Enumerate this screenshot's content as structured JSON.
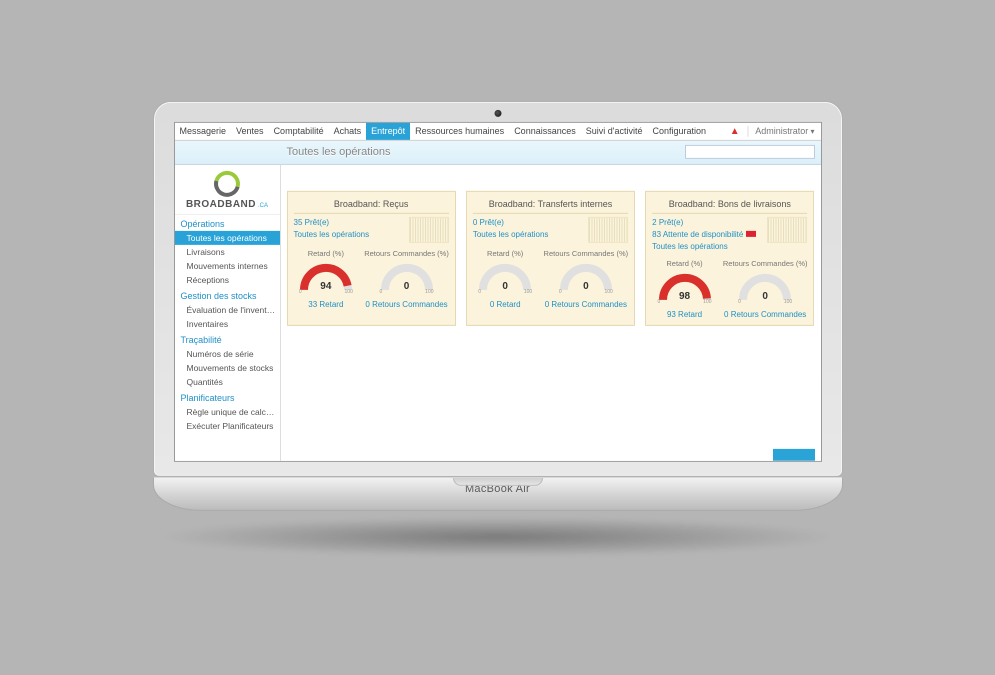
{
  "laptop_label": "MacBook Air",
  "menubar": {
    "items": [
      "Messagerie",
      "Ventes",
      "Comptabilité",
      "Achats",
      "Entrepôt",
      "Ressources humaines",
      "Connaissances",
      "Suivi d'activité",
      "Configuration"
    ],
    "active_index": 4,
    "user": "Administrator"
  },
  "page_title": "Toutes les opérations",
  "search_placeholder": "",
  "logo": {
    "text": "BROADBAND",
    "sub": ".CA"
  },
  "sidebar": {
    "groups": [
      {
        "title": "Opérations",
        "items": [
          "Toutes les opérations",
          "Livraisons",
          "Mouvements internes",
          "Réceptions"
        ],
        "active_index": 0
      },
      {
        "title": "Gestion des stocks",
        "items": [
          "Évaluation de l'inventair...",
          "Inventaires"
        ]
      },
      {
        "title": "Traçabilité",
        "items": [
          "Numéros de série",
          "Mouvements de stocks",
          "Quantités"
        ]
      },
      {
        "title": "Planificateurs",
        "items": [
          "Règle unique de calculs...",
          "Exécuter Planificateurs"
        ]
      }
    ]
  },
  "view_toggle": {
    "options": [
      "▦",
      "☐"
    ],
    "active": 0
  },
  "cards": [
    {
      "title": "Broadband: Reçus",
      "links": [
        {
          "text": "35 Prêt(e)"
        },
        {
          "text": "Toutes les opérations"
        }
      ],
      "gauges": [
        {
          "label": "Retard (%)",
          "value": 94,
          "fill_pct": 94,
          "color": "#d9302c",
          "tick_min": "0",
          "tick_max": "100",
          "caption": "33 Retard"
        },
        {
          "label": "Retours Commandes (%)",
          "value": 0,
          "fill_pct": 0,
          "color": "#d9302c",
          "tick_min": "0",
          "tick_max": "100",
          "caption": "0 Retours Commandes"
        }
      ]
    },
    {
      "title": "Broadband: Transferts internes",
      "links": [
        {
          "text": "0 Prêt(e)"
        },
        {
          "text": "Toutes les opérations"
        }
      ],
      "gauges": [
        {
          "label": "Retard (%)",
          "value": 0,
          "fill_pct": 0,
          "color": "#d9302c",
          "tick_min": "0",
          "tick_max": "100",
          "caption": "0 Retard"
        },
        {
          "label": "Retours Commandes (%)",
          "value": 0,
          "fill_pct": 0,
          "color": "#d9302c",
          "tick_min": "0",
          "tick_max": "100",
          "caption": "0 Retours Commandes"
        }
      ]
    },
    {
      "title": "Broadband: Bons de livraisons",
      "links": [
        {
          "text": "2 Prêt(e)"
        },
        {
          "text": "83 Attente de disponibilité",
          "flag": true
        },
        {
          "text": "Toutes les opérations"
        }
      ],
      "gauges": [
        {
          "label": "Retard (%)",
          "value": 98,
          "fill_pct": 98,
          "color": "#d9302c",
          "tick_min": "0",
          "tick_max": "100",
          "caption": "93 Retard"
        },
        {
          "label": "Retours Commandes (%)",
          "value": 0,
          "fill_pct": 0,
          "color": "#d9302c",
          "tick_min": "0",
          "tick_max": "100",
          "caption": "0 Retours Commandes"
        }
      ]
    }
  ],
  "colors": {
    "accent": "#29a3d7",
    "link": "#1e90c8",
    "card_bg": "#fbf3db",
    "card_border": "#e5d9b0",
    "gauge_track": "#e0e0e0",
    "gauge_fill": "#d9302c",
    "alert": "#d9302c"
  }
}
